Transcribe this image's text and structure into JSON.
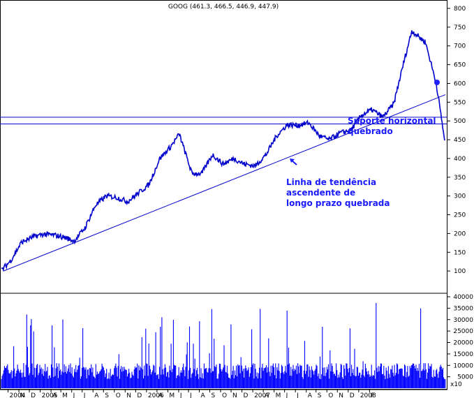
{
  "chart_data": {
    "type": "line",
    "title": "GOOG (461.3, 466.5, 446.9, 447.9)",
    "colors": {
      "price": "#0000cc",
      "volume": "#0000ff",
      "lines": "#0000cc",
      "annotation": "#1a1aff"
    },
    "y_axis": {
      "position": "right",
      "ylim": [
        50,
        800
      ],
      "ticks": [
        100,
        150,
        200,
        250,
        300,
        350,
        400,
        450,
        500,
        550,
        600,
        650,
        700,
        750,
        800
      ]
    },
    "volume_axis": {
      "ylim": [
        0,
        40000
      ],
      "ticks": [
        5000,
        10000,
        15000,
        20000,
        25000,
        30000,
        35000,
        40000
      ],
      "extra_label": "x10"
    },
    "x_axis": {
      "labels": [
        "2004",
        "N",
        "D",
        "2005",
        "A",
        "M",
        "J",
        "J",
        "A",
        "S",
        "O",
        "N",
        "D",
        "2006",
        "A",
        "M",
        "J",
        "J",
        "A",
        "S",
        "O",
        "N",
        "D",
        "2007",
        "A",
        "M",
        "J",
        "J",
        "A",
        "S",
        "O",
        "N",
        "D",
        "2008",
        "F"
      ],
      "range": [
        "2004-08-19",
        "2008-02-10"
      ]
    },
    "price_series": {
      "name": "GOOG",
      "x": [
        "2004-08-19",
        "2004-09-15",
        "2004-10-15",
        "2004-11-15",
        "2004-12-15",
        "2005-01-15",
        "2005-02-15",
        "2005-03-15",
        "2005-04-15",
        "2005-05-15",
        "2005-06-15",
        "2005-07-15",
        "2005-08-15",
        "2005-09-15",
        "2005-10-15",
        "2005-11-15",
        "2005-12-15",
        "2006-01-10",
        "2006-02-15",
        "2006-03-15",
        "2006-04-15",
        "2006-05-15",
        "2006-06-15",
        "2006-07-15",
        "2006-08-15",
        "2006-09-15",
        "2006-10-15",
        "2006-11-15",
        "2006-12-15",
        "2007-01-15",
        "2007-02-15",
        "2007-03-15",
        "2007-04-15",
        "2007-05-15",
        "2007-06-15",
        "2007-07-15",
        "2007-08-15",
        "2007-09-15",
        "2007-10-15",
        "2007-11-06",
        "2007-12-15",
        "2008-01-15",
        "2008-02-08"
      ],
      "y": [
        102,
        128,
        176,
        190,
        198,
        196,
        190,
        180,
        215,
        275,
        300,
        296,
        285,
        308,
        330,
        400,
        430,
        465,
        360,
        360,
        410,
        385,
        400,
        385,
        380,
        410,
        460,
        490,
        488,
        495,
        460,
        450,
        468,
        475,
        515,
        530,
        510,
        545,
        660,
        740,
        710,
        600,
        448
      ]
    },
    "volume_series": {
      "name": "Volume",
      "unit": "x10"
    },
    "trend_line": {
      "name": "",
      "start": [
        "2004-08-25",
        100
      ],
      "end": [
        "2008-02-10",
        570
      ]
    },
    "support_lines": [
      {
        "value": 510
      },
      {
        "value": 492
      }
    ],
    "annotations": [
      {
        "lines": [
          "Suporte horizontal",
          "quebrado"
        ]
      },
      {
        "lines": [
          "Linha de tendência",
          "ascendente de",
          "longo prazo quebrada"
        ]
      }
    ],
    "grid": false,
    "legend": "none"
  }
}
